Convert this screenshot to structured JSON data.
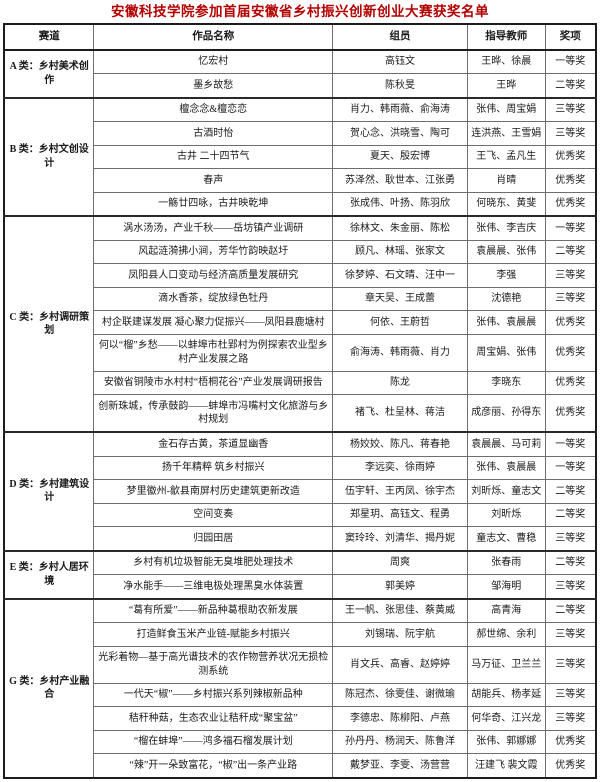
{
  "colors": {
    "title_red": "#b30000",
    "border_dark": "#1c1c1c",
    "border_light": "#6e6e6e",
    "text": "#1a1a1a",
    "background": "#ffffff"
  },
  "title": "安徽科技学院参加首届安徽省乡村振兴创新创业大赛获奖名单",
  "table": {
    "headers": [
      "赛道",
      "作品名称",
      "组员",
      "指导教师",
      "奖项"
    ],
    "groups": [
      {
        "track": "A 类：乡村美术创作",
        "rows": [
          {
            "work": "忆宏村",
            "members": "高钰文",
            "advisors": "王晔、徐晨",
            "award": "一等奖"
          },
          {
            "work": "墨乡故愁",
            "members": "陈秋旻",
            "advisors": "王晔",
            "award": "二等奖"
          }
        ]
      },
      {
        "track": "B 类：乡村文创设计",
        "rows": [
          {
            "work": "檀念念&檀恋恋",
            "members": "肖力、韩雨薇、俞海涛",
            "advisors": "张伟、周宝娟",
            "award": "三等奖"
          },
          {
            "work": "古酒时怡",
            "members": "贺心念、洪晓雪、陶可",
            "advisors": "连洪燕、王雪娟",
            "award": "三等奖"
          },
          {
            "work": "古井 二十四节气",
            "members": "夏天、殷宏博",
            "advisors": "王飞、孟凡生",
            "award": "优秀奖"
          },
          {
            "work": "春声",
            "members": "苏泽然、耿世本、江张勇",
            "advisors": "肖晴",
            "award": "优秀奖"
          },
          {
            "work": "一觞廿四咏，古井映乾坤",
            "members": "张成伟、叶扬、陈羽欣",
            "advisors": "何晓东、黄斐",
            "award": "优秀奖"
          }
        ]
      },
      {
        "track": "C 类：乡村调研策划",
        "rows": [
          {
            "work": "涡水汤汤，产业千秋——岳坊镇产业调研",
            "members": "徐林文、朱金丽、陈松",
            "advisors": "张伟、李吉庆",
            "award": "一等奖"
          },
          {
            "work": "风起涟漪拂小涧，芳华竹韵映赵圩",
            "members": "顾凡、林瑶、张家文",
            "advisors": "袁晨晨、张伟",
            "award": "二等奖"
          },
          {
            "work": "凤阳县人口变动与经济高质量发展研究",
            "members": "徐梦婷、石文晴、汪中一",
            "advisors": "李强",
            "award": "三等奖"
          },
          {
            "work": "滴水香茶，绽放绿色牡丹",
            "members": "章天吴、王成蕾",
            "advisors": "沈德艳",
            "award": "三等奖"
          },
          {
            "work": "村企联建谋发展 凝心聚力促振兴——凤阳县鹿塘村",
            "members": "何依、王蔚哲",
            "advisors": "张伟、袁晨晨",
            "award": "优秀奖"
          },
          {
            "work": "何以“榴”乡愁——以蚌埠市杜郢村为例探索农业型乡村产业发展之路",
            "members": "俞海涛、韩雨薇、肖力",
            "advisors": "周宝娟、张伟",
            "award": "优秀奖"
          },
          {
            "work": "安徽省铜陵市水村村“梧桐花谷”产业发展调研报告",
            "members": "陈龙",
            "advisors": "李晓东",
            "award": "优秀奖"
          },
          {
            "work": "创新珠城，传承鼓韵——蚌埠市冯嘴村文化旅游与乡村规划",
            "members": "褚飞、杜呈林、蒋洁",
            "advisors": "成彦丽、孙得东",
            "award": "优秀奖"
          }
        ]
      },
      {
        "track": "D 类：乡村建筑设计",
        "rows": [
          {
            "work": "金石存古黄，茶道显幽香",
            "members": "杨姣姣、陈凡、蒋春艳",
            "advisors": "袁晨晨、马可莉",
            "award": "一等奖"
          },
          {
            "work": "扬千年精粹 筑乡村振兴",
            "members": "李远奕、徐雨婷",
            "advisors": "张伟、袁晨晨",
            "award": "一等奖"
          },
          {
            "work": "梦里徽州-歙县南屏村历史建筑更新改造",
            "members": "伍宇轩、王丙凤、徐宇杰",
            "advisors": "刘昕烁、童志文",
            "award": "二等奖"
          },
          {
            "work": "空间变奏",
            "members": "郑星玥、高钰文、程勇",
            "advisors": "刘昕烁",
            "award": "二等奖"
          },
          {
            "work": "归园田居",
            "members": "窦玲玲、刘清华、揭丹妮",
            "advisors": "童志文、曹稳",
            "award": "三等奖"
          }
        ]
      },
      {
        "track": "E 类：乡村人居环境",
        "rows": [
          {
            "work": "乡村有机垃圾智能无臭堆肥处理技术",
            "members": "周爽",
            "advisors": "张春雨",
            "award": "二等奖"
          },
          {
            "work": "净水能手——三维电极处理黑臭水体装置",
            "members": "郭美婷",
            "advisors": "邹海明",
            "award": "三等奖"
          }
        ]
      },
      {
        "track": "G 类：乡村产业融合",
        "rows": [
          {
            "work": "“葛有所爱”——新品种葛根助农新发展",
            "members": "王一帆、张思佳、蔡黄威",
            "advisors": "高青海",
            "award": "二等奖"
          },
          {
            "work": "打造鲜食玉米产业链-赋能乡村振兴",
            "members": "刘锡瑞、阮宇航",
            "advisors": "郝世绵、余利",
            "award": "三等奖"
          },
          {
            "work": "光彩着物—基于高光谱技术的农作物营养状况无损检测系统",
            "members": "肖文兵、高睿、赵婷婷",
            "advisors": "马万征、卫兰兰",
            "award": "三等奖"
          },
          {
            "work": "一代天“椒”——乡村振兴系列辣椒新品种",
            "members": "陈冠杰、徐雯佳、谢微瑜",
            "advisors": "胡能兵、杨孝延",
            "award": "三等奖"
          },
          {
            "work": "秸秆种菇，生态农业让秸秆成“聚宝盆”",
            "members": "李德忠、陈柳阳、卢燕",
            "advisors": "何华奇、江兴龙",
            "award": "三等奖"
          },
          {
            "work": "“榴在蚌埠”——鸿多福石榴发展计划",
            "members": "孙丹丹、杨润天、陈鲁洋",
            "advisors": "张伟、郭娜娜",
            "award": "优秀奖"
          },
          {
            "work": "“辣”开一朵致富花，“椒”出一条产业路",
            "members": "戴梦亚、李雯、汤营营",
            "advisors": "汪建飞 裴文霞",
            "award": "优秀奖"
          }
        ]
      }
    ]
  }
}
